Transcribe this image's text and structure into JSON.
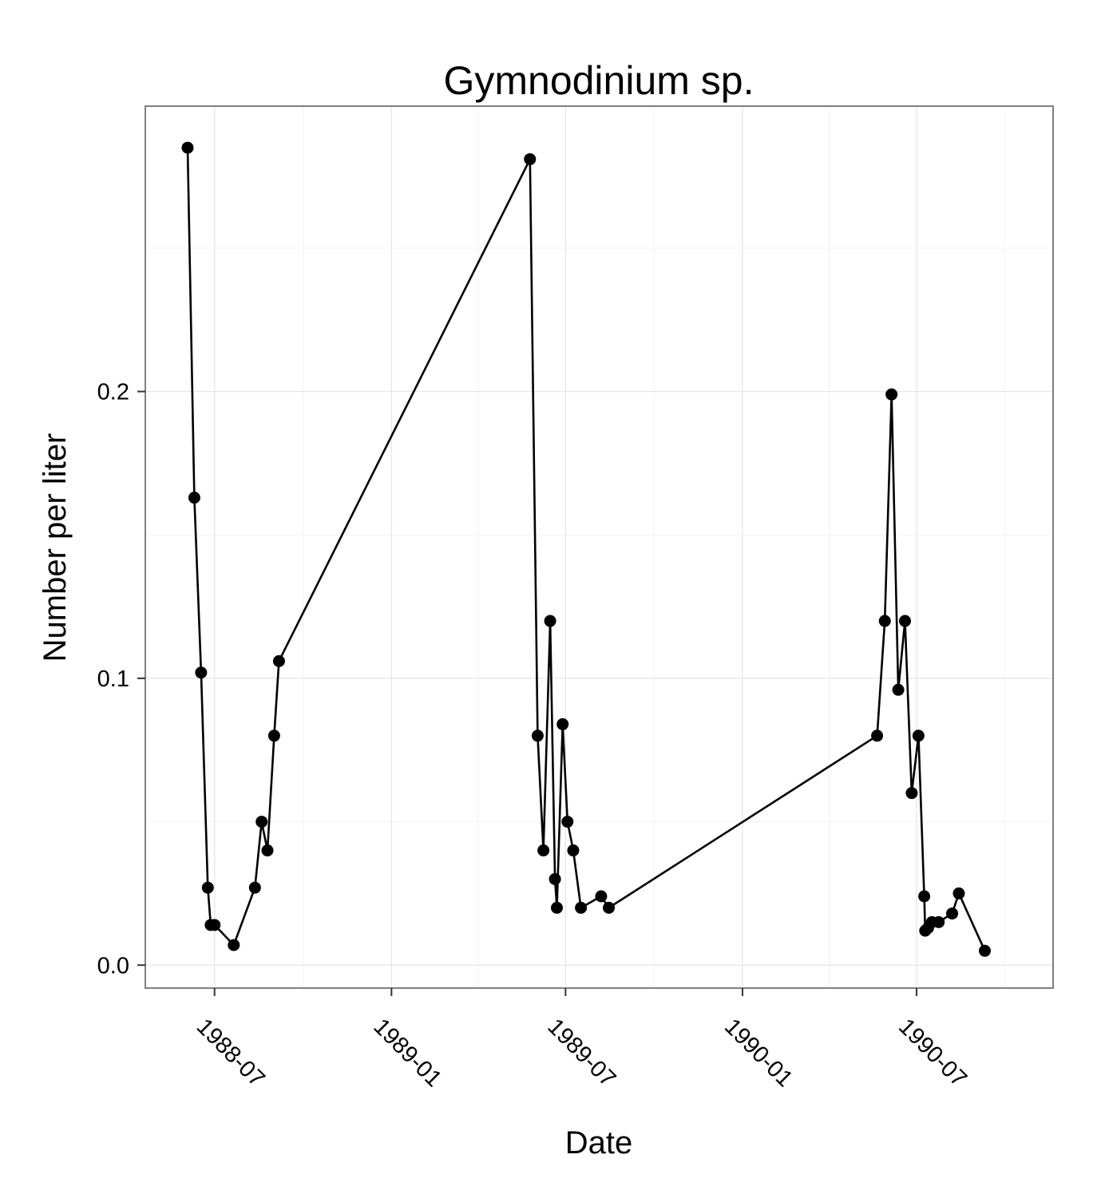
{
  "chart_data": {
    "type": "line",
    "title": "Gymnodinium sp.",
    "xlabel": "Date",
    "ylabel": "Number per liter",
    "x_axis": "date",
    "xlim": [
      "1988-04-20",
      "1990-11-20"
    ],
    "ylim": [
      -0.008,
      0.2995
    ],
    "x_ticks": [
      "1988-07",
      "1989-01",
      "1989-07",
      "1990-01",
      "1990-07"
    ],
    "y_ticks": [
      0.0,
      0.1,
      0.2
    ],
    "y_tick_labels": [
      "0.0",
      "0.1",
      "0.2"
    ],
    "grid": true,
    "series": [
      {
        "marker": "circle",
        "color": "#000000",
        "points": [
          {
            "x": "1988-06-03",
            "y": 0.285
          },
          {
            "x": "1988-06-10",
            "y": 0.163
          },
          {
            "x": "1988-06-17",
            "y": 0.102
          },
          {
            "x": "1988-06-24",
            "y": 0.027
          },
          {
            "x": "1988-06-27",
            "y": 0.014
          },
          {
            "x": "1988-07-01",
            "y": 0.014
          },
          {
            "x": "1988-07-21",
            "y": 0.007
          },
          {
            "x": "1988-08-12",
            "y": 0.027
          },
          {
            "x": "1988-08-19",
            "y": 0.05
          },
          {
            "x": "1988-08-25",
            "y": 0.04
          },
          {
            "x": "1988-09-01",
            "y": 0.08
          },
          {
            "x": "1988-09-06",
            "y": 0.106
          },
          {
            "x": "1989-05-25",
            "y": 0.281
          },
          {
            "x": "1989-06-02",
            "y": 0.08
          },
          {
            "x": "1989-06-08",
            "y": 0.04
          },
          {
            "x": "1989-06-15",
            "y": 0.12
          },
          {
            "x": "1989-06-20",
            "y": 0.03
          },
          {
            "x": "1989-06-22",
            "y": 0.02
          },
          {
            "x": "1989-06-28",
            "y": 0.084
          },
          {
            "x": "1989-07-03",
            "y": 0.05
          },
          {
            "x": "1989-07-09",
            "y": 0.04
          },
          {
            "x": "1989-07-17",
            "y": 0.02
          },
          {
            "x": "1989-08-07",
            "y": 0.024
          },
          {
            "x": "1989-08-15",
            "y": 0.02
          },
          {
            "x": "1990-05-21",
            "y": 0.08
          },
          {
            "x": "1990-05-29",
            "y": 0.12
          },
          {
            "x": "1990-06-05",
            "y": 0.199
          },
          {
            "x": "1990-06-12",
            "y": 0.096
          },
          {
            "x": "1990-06-19",
            "y": 0.12
          },
          {
            "x": "1990-06-26",
            "y": 0.06
          },
          {
            "x": "1990-07-03",
            "y": 0.08
          },
          {
            "x": "1990-07-09",
            "y": 0.024
          },
          {
            "x": "1990-07-10",
            "y": 0.012
          },
          {
            "x": "1990-07-13",
            "y": 0.013
          },
          {
            "x": "1990-07-17",
            "y": 0.015
          },
          {
            "x": "1990-07-24",
            "y": 0.015
          },
          {
            "x": "1990-08-07",
            "y": 0.018
          },
          {
            "x": "1990-08-14",
            "y": 0.025
          },
          {
            "x": "1990-09-10",
            "y": 0.005
          }
        ]
      }
    ]
  }
}
